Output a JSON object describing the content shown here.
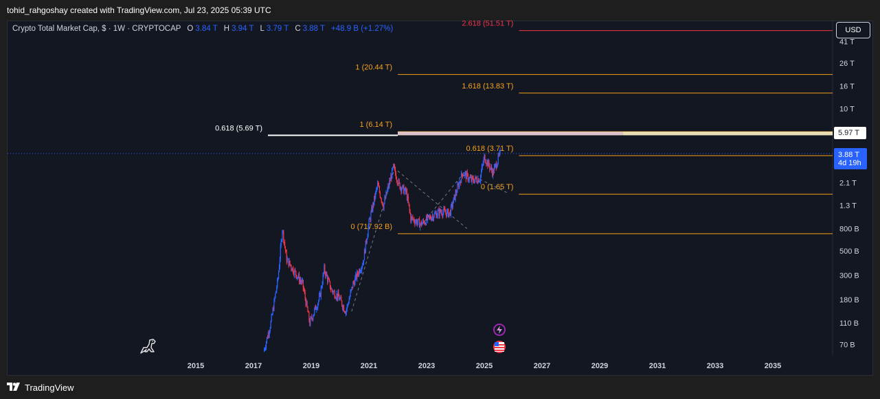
{
  "header": {
    "attribution": "tohid_rahgoshay created with TradingView.com, Jul 23, 2025 05:39 UTC"
  },
  "legend": {
    "symbol": "Crypto Total Market Cap, $ · 1W · CRYPTOCAP",
    "open_label": "O",
    "open": "3.84 T",
    "high_label": "H",
    "high": "3.94 T",
    "low_label": "L",
    "low": "3.79 T",
    "close_label": "C",
    "close": "3.88 T",
    "change": "+48.9 B (+1.27%)"
  },
  "currency_button": "USD",
  "price_tags": {
    "level": "5.97 T",
    "last": "3.88 T",
    "countdown": "4d 19h"
  },
  "footer": {
    "brand": "TradingView"
  },
  "colors": {
    "candle_up": "#2962ff",
    "candle_down": "#f23645",
    "fib": "#f7a21b",
    "fib_ext": "#f23645",
    "background": "#131722"
  },
  "chart_data": {
    "type": "candlestick",
    "y_scale": "log",
    "ylim": [
      "70 B",
      "41 T"
    ],
    "xlim": [
      2014,
      2037
    ],
    "x_ticks": [
      "2015",
      "2017",
      "2019",
      "2021",
      "2023",
      "2025",
      "2027",
      "2029",
      "2031",
      "2033",
      "2035"
    ],
    "y_ticks": [
      "41 T",
      "26 T",
      "16 T",
      "10 T",
      "5.97 T",
      "3.88 T",
      "2.1 T",
      "1.3 T",
      "800 B",
      "500 B",
      "300 B",
      "180 B",
      "110 B",
      "70 B"
    ],
    "price_path": [
      {
        "x": 2017.35,
        "y": 60
      },
      {
        "x": 2017.6,
        "y": 110
      },
      {
        "x": 2017.85,
        "y": 280
      },
      {
        "x": 2018.0,
        "y": 800
      },
      {
        "x": 2018.15,
        "y": 420
      },
      {
        "x": 2018.4,
        "y": 330
      },
      {
        "x": 2018.7,
        "y": 250
      },
      {
        "x": 2018.95,
        "y": 110
      },
      {
        "x": 2019.3,
        "y": 190
      },
      {
        "x": 2019.45,
        "y": 340
      },
      {
        "x": 2019.7,
        "y": 220
      },
      {
        "x": 2019.95,
        "y": 190
      },
      {
        "x": 2020.2,
        "y": 140
      },
      {
        "x": 2020.45,
        "y": 250
      },
      {
        "x": 2020.8,
        "y": 400
      },
      {
        "x": 2021.0,
        "y": 900
      },
      {
        "x": 2021.3,
        "y": 2000
      },
      {
        "x": 2021.5,
        "y": 1300
      },
      {
        "x": 2021.85,
        "y": 2900
      },
      {
        "x": 2022.05,
        "y": 2000
      },
      {
        "x": 2022.3,
        "y": 1700
      },
      {
        "x": 2022.45,
        "y": 1000
      },
      {
        "x": 2022.8,
        "y": 880
      },
      {
        "x": 2023.2,
        "y": 1050
      },
      {
        "x": 2023.5,
        "y": 1150
      },
      {
        "x": 2023.8,
        "y": 1100
      },
      {
        "x": 2024.0,
        "y": 1650
      },
      {
        "x": 2024.25,
        "y": 2600
      },
      {
        "x": 2024.55,
        "y": 2200
      },
      {
        "x": 2024.85,
        "y": 2300
      },
      {
        "x": 2025.0,
        "y": 3600
      },
      {
        "x": 2025.3,
        "y": 2600
      },
      {
        "x": 2025.55,
        "y": 3880
      }
    ],
    "fib_levels": [
      {
        "label": "2.618 (51.51 T)",
        "value": 51510,
        "from": 2026.2,
        "color": "ext"
      },
      {
        "label": "1 (20.44 T)",
        "value": 20440,
        "from": 2022.0,
        "color": "fib"
      },
      {
        "label": "1.618 (13.83 T)",
        "value": 13830,
        "from": 2026.2,
        "color": "fib"
      },
      {
        "label": "0.618 (5.69 T)",
        "value": 5690,
        "from": 2014.8,
        "color": "white"
      },
      {
        "label": "1 (6.14 T)",
        "value": 6140,
        "from": 2022.0,
        "color": "fib"
      },
      {
        "label": "0.618 (3.71 T)",
        "value": 3710,
        "from": 2026.2,
        "color": "fib"
      },
      {
        "label": "0 (1.65 T)",
        "value": 1650,
        "from": 2026.2,
        "color": "fib"
      },
      {
        "label": "0 (717.92 B)",
        "value": 717.92,
        "from": 2022.0,
        "color": "fib"
      }
    ]
  }
}
